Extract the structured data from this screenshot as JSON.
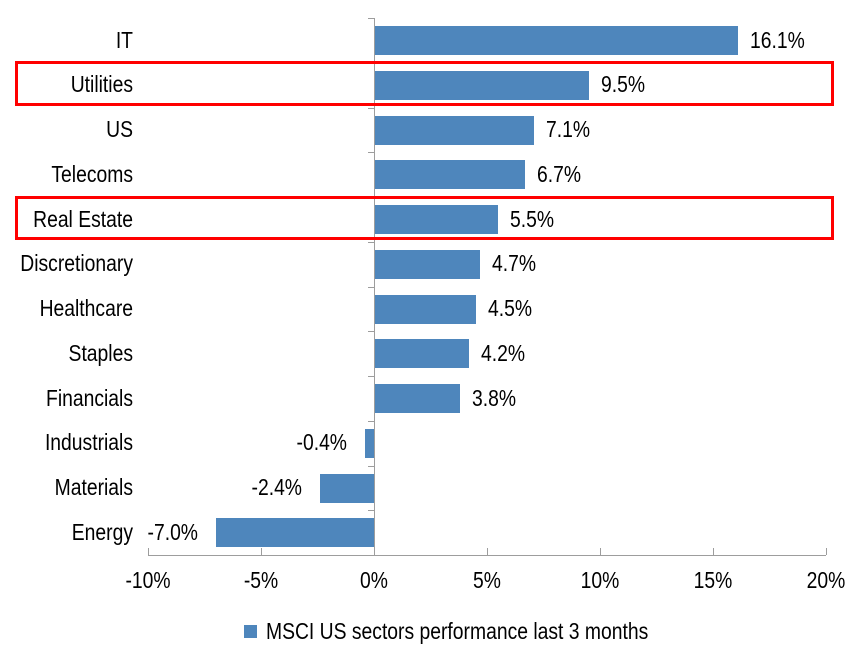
{
  "chart_data": {
    "type": "bar",
    "orientation": "horizontal",
    "title": "",
    "categories": [
      "IT",
      "Utilities",
      "US",
      "Telecoms",
      "Real Estate",
      "Discretionary",
      "Healthcare",
      "Staples",
      "Financials",
      "Industrials",
      "Materials",
      "Energy"
    ],
    "values": [
      16.1,
      9.5,
      7.1,
      6.7,
      5.5,
      4.7,
      4.5,
      4.2,
      3.8,
      -0.4,
      -2.4,
      -7.0
    ],
    "value_labels": [
      "16.1%",
      "9.5%",
      "7.1%",
      "6.7%",
      "5.5%",
      "4.7%",
      "4.5%",
      "4.2%",
      "3.8%",
      "-0.4%",
      "-2.4%",
      "-7.0%"
    ],
    "highlighted_categories": [
      "Utilities",
      "Real Estate"
    ],
    "x_ticks": [
      {
        "value": -10,
        "label": "-10%"
      },
      {
        "value": -5,
        "label": "-5%"
      },
      {
        "value": 0,
        "label": "0%"
      },
      {
        "value": 5,
        "label": "5%"
      },
      {
        "value": 10,
        "label": "10%"
      },
      {
        "value": 15,
        "label": "15%"
      },
      {
        "value": 20,
        "label": "20%"
      }
    ],
    "xlim": [
      -10,
      20
    ],
    "grid": false,
    "legend_position": "bottom-center",
    "legend": "MSCI US sectors performance last 3 months",
    "colors": {
      "bar": "#4E86BC",
      "highlight_border": "#FF0000",
      "axis": "#9D9D9D",
      "text": "#000000",
      "background": "#FFFFFF"
    }
  }
}
